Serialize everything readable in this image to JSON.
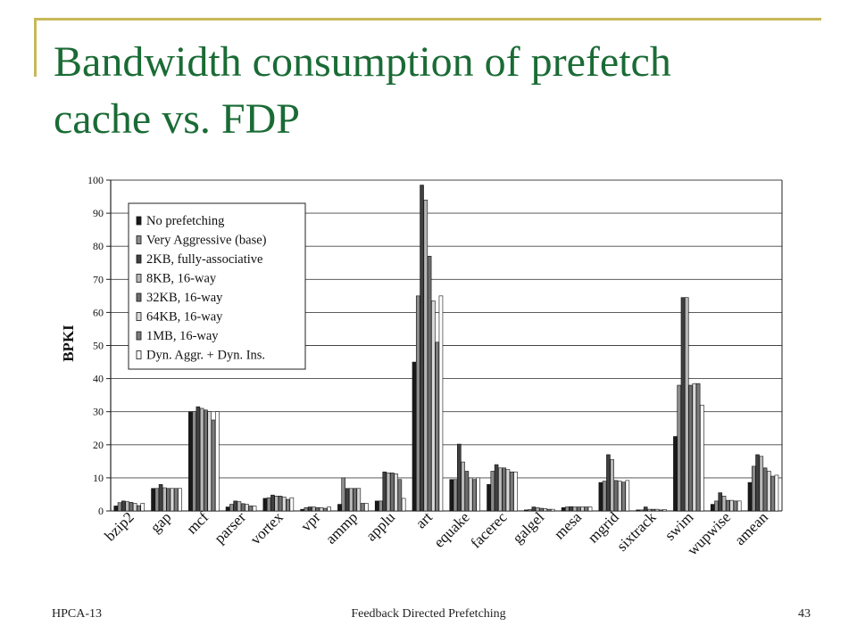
{
  "slide": {
    "title_line1": "Bandwidth consumption of prefetch",
    "title_line2": "cache vs. FDP",
    "footer_left": "HPCA-13",
    "footer_center": "Feedback Directed Prefetching",
    "footer_right": "43",
    "colors": {
      "title": "#1a6b35",
      "accent": "#c8b85a"
    }
  },
  "chart_data": {
    "type": "bar",
    "title": "",
    "xlabel": "",
    "ylabel": "BPKI",
    "ylim": [
      0,
      100
    ],
    "yticks": [
      0,
      10,
      20,
      30,
      40,
      50,
      60,
      70,
      80,
      90,
      100
    ],
    "grid": true,
    "legend_position": "top-left",
    "categories": [
      "bzip2",
      "gap",
      "mcf",
      "parser",
      "vortex",
      "vpr",
      "ammp",
      "applu",
      "art",
      "equake",
      "facerec",
      "galgel",
      "mesa",
      "mgrid",
      "sixtrack",
      "swim",
      "wupwise",
      "amean"
    ],
    "series": [
      {
        "name": "No prefetching",
        "color": "#1a1a1a",
        "values": [
          1.5,
          6.8,
          30,
          1.2,
          3.8,
          0.5,
          2.0,
          3.0,
          45,
          9.5,
          8.0,
          0.3,
          1.0,
          8.6,
          0.3,
          22.5,
          2.0,
          8.6
        ]
      },
      {
        "name": "Very Aggressive (base)",
        "color": "#8c8c8c",
        "values": [
          2.5,
          6.8,
          30,
          2.0,
          4.0,
          1.0,
          10.0,
          3.0,
          65,
          9.5,
          12.0,
          0.4,
          1.2,
          9.0,
          0.3,
          38,
          3.0,
          13.5
        ]
      },
      {
        "name": "2KB, fully-associative",
        "color": "#404040",
        "values": [
          3.0,
          8.0,
          31.5,
          3.0,
          4.8,
          1.2,
          6.8,
          11.8,
          98.5,
          20.2,
          14.0,
          1.2,
          1.3,
          17.0,
          1.2,
          64.5,
          5.5,
          17.0
        ]
      },
      {
        "name": "8KB, 16-way",
        "color": "#b8b8b8",
        "values": [
          2.8,
          7.0,
          31.0,
          2.8,
          4.5,
          1.2,
          6.8,
          11.5,
          94,
          14.8,
          13.0,
          1.0,
          1.2,
          15.5,
          0.5,
          64.5,
          4.5,
          16.5
        ]
      },
      {
        "name": "32KB, 16-way",
        "color": "#6e6e6e",
        "values": [
          2.6,
          6.8,
          30.5,
          2.2,
          4.5,
          1.0,
          6.8,
          11.5,
          77,
          12.0,
          13.0,
          0.8,
          1.2,
          9.2,
          0.5,
          38,
          3.2,
          13.0
        ]
      },
      {
        "name": "64KB, 16-way",
        "color": "#d8d8d8",
        "values": [
          2.3,
          6.8,
          30.0,
          2.0,
          4.2,
          1.0,
          6.8,
          11.2,
          63.5,
          10.0,
          12.5,
          0.7,
          1.2,
          9.0,
          0.5,
          38.5,
          3.2,
          12.0
        ]
      },
      {
        "name": "1MB, 16-way",
        "color": "#7c7c7c",
        "values": [
          1.6,
          6.8,
          27.5,
          1.5,
          3.5,
          0.8,
          2.3,
          9.5,
          51,
          9.5,
          11.8,
          0.5,
          1.2,
          8.7,
          0.3,
          38.5,
          3.0,
          10.5
        ]
      },
      {
        "name": "Dyn. Aggr. + Dyn. Ins.",
        "color": "#ffffff",
        "values": [
          2.3,
          6.8,
          30.0,
          1.5,
          4.0,
          1.2,
          2.3,
          3.8,
          65,
          10.0,
          11.8,
          0.5,
          1.2,
          9.2,
          0.4,
          32,
          3.0,
          10.8
        ]
      }
    ]
  }
}
